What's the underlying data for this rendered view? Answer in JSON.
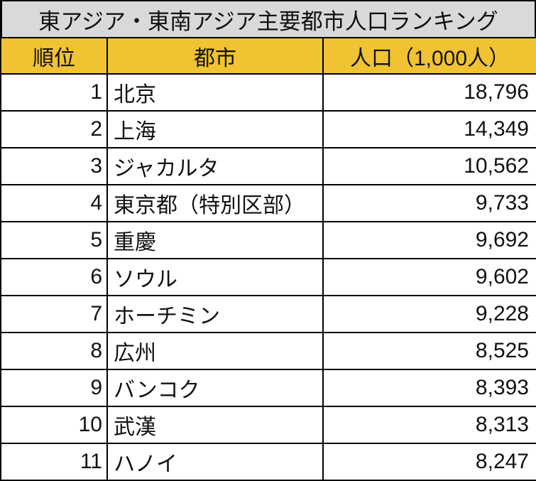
{
  "title": "東アジア・東南アジア主要都市人口ランキング",
  "colors": {
    "title_bg": "#d9d9d9",
    "header_bg": "#f1c232",
    "border": "#000000"
  },
  "headers": {
    "rank": "順位",
    "city": "都市",
    "population": "人口（1,000人）"
  },
  "rows": [
    {
      "rank": "1",
      "city": "北京",
      "population": "18,796"
    },
    {
      "rank": "2",
      "city": "上海",
      "population": "14,349"
    },
    {
      "rank": "3",
      "city": "ジャカルタ",
      "population": "10,562"
    },
    {
      "rank": "4",
      "city": "東京都（特別区部）",
      "population": "9,733"
    },
    {
      "rank": "5",
      "city": "重慶",
      "population": "9,692"
    },
    {
      "rank": "6",
      "city": "ソウル",
      "population": "9,602"
    },
    {
      "rank": "7",
      "city": "ホーチミン",
      "population": "9,228"
    },
    {
      "rank": "8",
      "city": "広州",
      "population": "8,525"
    },
    {
      "rank": "9",
      "city": "バンコク",
      "population": "8,393"
    },
    {
      "rank": "10",
      "city": "武漢",
      "population": "8,313"
    },
    {
      "rank": "11",
      "city": "ハノイ",
      "population": "8,247"
    }
  ]
}
